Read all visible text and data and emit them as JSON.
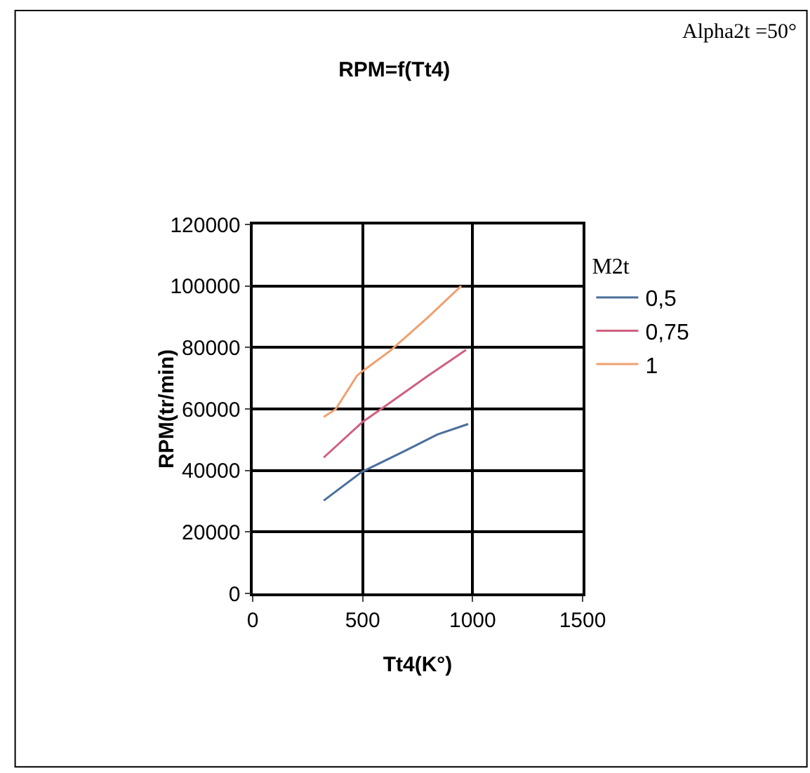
{
  "chart_data": {
    "type": "line",
    "title": "RPM=f(Tt4)",
    "xlabel": "Tt4(K°)",
    "ylabel": "RPM(tr/min)",
    "legend_title": "M2t",
    "annotations": [
      "Alpha2t =50°"
    ],
    "xlim": [
      0,
      1500
    ],
    "xticks": [
      0,
      500,
      1000,
      1500
    ],
    "ylim": [
      0,
      120000
    ],
    "yticks": [
      0,
      20000,
      40000,
      60000,
      80000,
      100000,
      120000
    ],
    "grid": true,
    "legend": "right",
    "marker": "none",
    "line_style": "solid",
    "series": [
      {
        "name": "0,5",
        "color": "#4a6f9a",
        "x": [
          323,
          496,
          690,
          840,
          980
        ],
        "values": [
          30200,
          39500,
          46300,
          51700,
          55100
        ]
      },
      {
        "name": "0,75",
        "color": "#d0607f",
        "x": [
          323,
          500,
          582,
          797,
          970
        ],
        "values": [
          44200,
          55800,
          59900,
          70800,
          79200
        ]
      },
      {
        "name": "1",
        "color": "#f0a070",
        "x": [
          323,
          377,
          474,
          496,
          625,
          797,
          948
        ],
        "values": [
          57400,
          59900,
          70800,
          72100,
          78900,
          89800,
          100000
        ]
      }
    ]
  }
}
